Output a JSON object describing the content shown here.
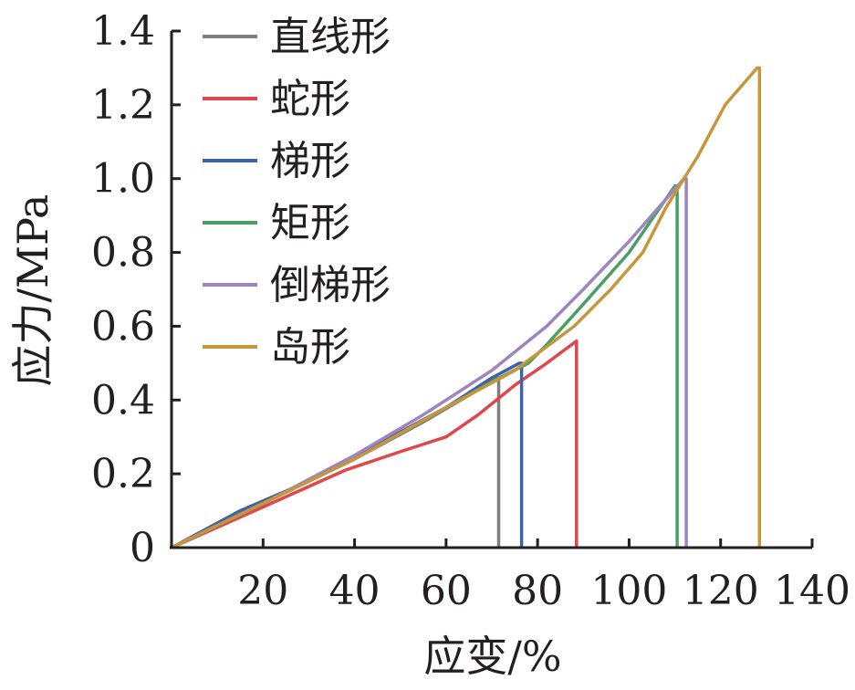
{
  "chart_data": {
    "type": "line",
    "title": "",
    "xlabel": "应变/%",
    "ylabel": "应力/MPa",
    "xlim": [
      0,
      140
    ],
    "ylim": [
      0,
      1.4
    ],
    "x_ticks": [
      20,
      40,
      60,
      80,
      100,
      120,
      140
    ],
    "x_tick_labels": [
      "20",
      "40",
      "60",
      "80",
      "100",
      "120",
      "140"
    ],
    "y_ticks": [
      0,
      0.2,
      0.4,
      0.6,
      0.8,
      1.0,
      1.2,
      1.4
    ],
    "y_tick_labels": [
      "0",
      "0.2",
      "0.4",
      "0.6",
      "0.8",
      "1.0",
      "1.2",
      "1.4"
    ],
    "grid": false,
    "legend_position": "top-left",
    "series": [
      {
        "name": "直线形",
        "color": "#7f7f7f",
        "points": [
          [
            0,
            0
          ],
          [
            20,
            0.12
          ],
          [
            40,
            0.24
          ],
          [
            55,
            0.34
          ],
          [
            66,
            0.42
          ],
          [
            71,
            0.46
          ],
          [
            71.5,
            0.46
          ],
          [
            71.5,
            0
          ]
        ]
      },
      {
        "name": "蛇形",
        "color": "#e0474c",
        "points": [
          [
            0,
            0
          ],
          [
            20,
            0.11
          ],
          [
            38,
            0.21
          ],
          [
            50,
            0.26
          ],
          [
            60,
            0.3
          ],
          [
            67,
            0.36
          ],
          [
            75,
            0.44
          ],
          [
            82,
            0.5
          ],
          [
            88.5,
            0.56
          ],
          [
            88.5,
            0
          ]
        ]
      },
      {
        "name": "梯形",
        "color": "#4062a6",
        "points": [
          [
            0,
            0
          ],
          [
            15,
            0.1
          ],
          [
            30,
            0.18
          ],
          [
            45,
            0.28
          ],
          [
            60,
            0.38
          ],
          [
            70,
            0.46
          ],
          [
            76,
            0.5
          ],
          [
            76.5,
            0.5
          ],
          [
            76.5,
            0
          ]
        ]
      },
      {
        "name": "矩形",
        "color": "#4aa064",
        "points": [
          [
            0,
            0
          ],
          [
            20,
            0.12
          ],
          [
            40,
            0.24
          ],
          [
            60,
            0.38
          ],
          [
            70,
            0.45
          ],
          [
            78,
            0.5
          ],
          [
            82,
            0.55
          ],
          [
            90,
            0.66
          ],
          [
            100,
            0.8
          ],
          [
            110,
            0.98
          ],
          [
            110.5,
            0.98
          ],
          [
            110.5,
            0
          ]
        ]
      },
      {
        "name": "倒梯形",
        "color": "#9e85c0",
        "points": [
          [
            0,
            0
          ],
          [
            20,
            0.12
          ],
          [
            40,
            0.25
          ],
          [
            55,
            0.36
          ],
          [
            70,
            0.48
          ],
          [
            82,
            0.6
          ],
          [
            90,
            0.7
          ],
          [
            100,
            0.83
          ],
          [
            112,
            1.0
          ],
          [
            112.5,
            1.0
          ],
          [
            112.5,
            0
          ]
        ]
      },
      {
        "name": "岛形",
        "color": "#c6963a",
        "points": [
          [
            0,
            0
          ],
          [
            20,
            0.12
          ],
          [
            40,
            0.24
          ],
          [
            60,
            0.38
          ],
          [
            75,
            0.48
          ],
          [
            88,
            0.6
          ],
          [
            96,
            0.7
          ],
          [
            103,
            0.8
          ],
          [
            108,
            0.92
          ],
          [
            115,
            1.06
          ],
          [
            121,
            1.2
          ],
          [
            128,
            1.3
          ],
          [
            128.5,
            1.3
          ],
          [
            128.5,
            0
          ]
        ]
      }
    ]
  }
}
